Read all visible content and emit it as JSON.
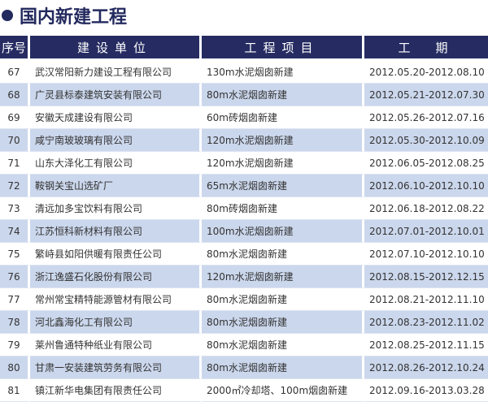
{
  "title": "国内新建工程",
  "colors": {
    "header": "#262c62",
    "row_alt": "#cbd7ec"
  },
  "headers": [
    "序号",
    "建设单位",
    "工程项目",
    "工　期"
  ],
  "rows": [
    [
      "67",
      "武汉常阳新力建设工程有限公司",
      "130m水泥烟囱新建",
      "2012.05.20-2012.08.10"
    ],
    [
      "68",
      "广灵县标泰建筑安装有限公司",
      "80m水泥烟囱新建",
      "2012.05.21-2012.07.30"
    ],
    [
      "69",
      "安徽天成建设有限公司",
      "60m砖烟囱新建",
      "2012.05.26-2012.07.16"
    ],
    [
      "70",
      "咸宁南玻玻璃有限公司",
      "120m水泥烟囱新建",
      "2012.05.30-2012.10.09"
    ],
    [
      "71",
      "山东大泽化工有限公司",
      "120m水泥烟囱新建",
      "2012.06.05-2012.08.25"
    ],
    [
      "72",
      "鞍钢关宝山选矿厂",
      "65m水泥烟囱新建",
      "2012.06.10-2012.10.10"
    ],
    [
      "73",
      "清远加多宝饮料有限公司",
      "80m砖烟囱新建",
      "2012.06.18-2012.08.22"
    ],
    [
      "74",
      "江苏恒科新材料有限公司",
      "100m水泥烟囱新建",
      "2012.07.01-2012.10.01"
    ],
    [
      "75",
      "繁峙县如阳供暖有限责任公司",
      "80m水泥烟囱新建",
      "2012.07.10-2012.10.10"
    ],
    [
      "76",
      "浙江逸盛石化股份有限公司",
      "120m水泥烟囱新建",
      "2012.08.15-2012.12.15"
    ],
    [
      "77",
      "常州常宝精特能源管材有限公司",
      "80m水泥烟囱新建",
      "2012.08.21-2012.11.10"
    ],
    [
      "78",
      "河北鑫海化工有限公司",
      "80m水泥烟囱新建",
      "2012.08.23-2012.11.02"
    ],
    [
      "79",
      "莱州鲁通特种纸业有限公司",
      "80m水泥烟囱新建",
      "2012.08.25-2012.11.15"
    ],
    [
      "80",
      "甘肃一安装建筑劳务有限公司",
      "80m水泥烟囱新建",
      "2012.08.26-2012.10.24"
    ],
    [
      "81",
      "镇江新华电集团有限责任公司",
      "2000㎡冷却塔、100m烟囱新建",
      "2012.09.16-2013.03.28"
    ]
  ]
}
